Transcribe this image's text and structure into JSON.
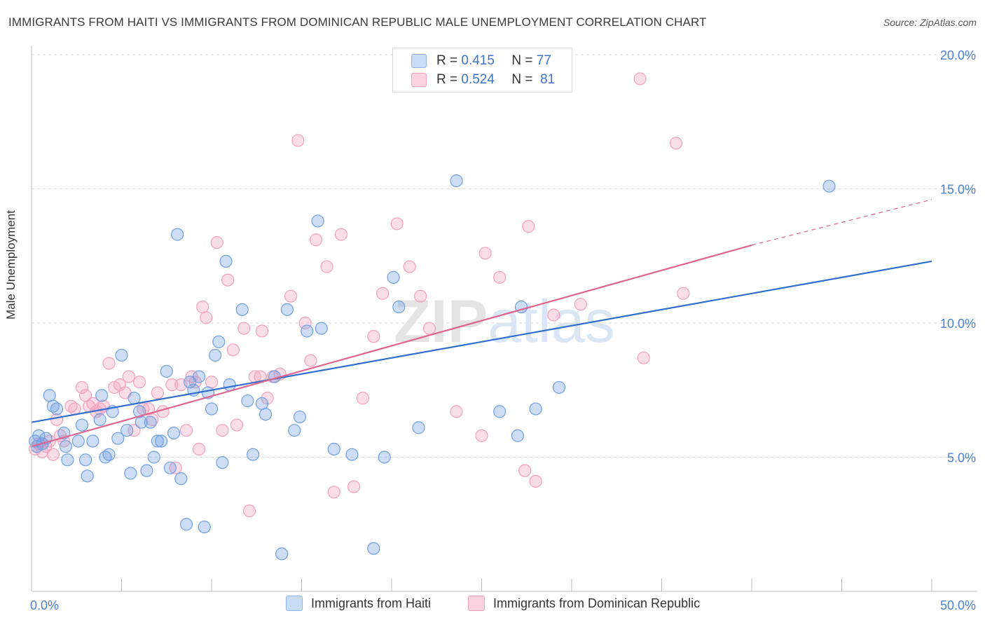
{
  "title": "IMMIGRANTS FROM HAITI VS IMMIGRANTS FROM DOMINICAN REPUBLIC MALE UNEMPLOYMENT CORRELATION CHART",
  "source": "Source: ZipAtlas.com",
  "watermark": "ZIPatlas",
  "legend": {
    "rows": [
      {
        "r_label": "R =",
        "r_value": "0.415",
        "n_label": "N =",
        "n_value": "77"
      },
      {
        "r_label": "R =",
        "r_value": "0.524",
        "n_label": "N =",
        "n_value": "81"
      }
    ]
  },
  "colors": {
    "haiti": "#6f9fe0",
    "haiti_line": "#2f6fcd",
    "dr": "#f2a0bb",
    "dr_line": "#e0648e",
    "tick": "#4a7fd0",
    "grid": "#d9d9d9"
  },
  "chart_data": {
    "type": "scatter",
    "title": "IMMIGRANTS FROM HAITI VS IMMIGRANTS FROM DOMINICAN REPUBLIC MALE UNEMPLOYMENT CORRELATION CHART",
    "xlabel": "",
    "ylabel": "Male Unemployment",
    "xlim": [
      0,
      50
    ],
    "ylim": [
      0,
      20
    ],
    "x_tick_labels": [
      "0.0%",
      "50.0%"
    ],
    "y_ticks": [
      5,
      10,
      15,
      20
    ],
    "y_tick_labels": [
      "5.0%",
      "10.0%",
      "15.0%",
      "20.0%"
    ],
    "grid": true,
    "legend_position": "top-center",
    "series": [
      {
        "name": "Immigrants from Haiti",
        "stats": {
          "R": 0.415,
          "N": 77
        },
        "trendline": {
          "x": [
            0,
            50
          ],
          "y": [
            6.3,
            12.3
          ]
        },
        "points": [
          [
            0.2,
            5.6
          ],
          [
            0.3,
            5.4
          ],
          [
            0.4,
            5.8
          ],
          [
            0.6,
            5.5
          ],
          [
            0.8,
            5.7
          ],
          [
            1.0,
            7.3
          ],
          [
            1.2,
            6.9
          ],
          [
            1.4,
            6.8
          ],
          [
            1.8,
            5.9
          ],
          [
            1.9,
            5.4
          ],
          [
            2.0,
            4.9
          ],
          [
            2.6,
            5.6
          ],
          [
            2.8,
            6.2
          ],
          [
            3.0,
            4.9
          ],
          [
            3.1,
            4.3
          ],
          [
            3.4,
            5.6
          ],
          [
            3.8,
            6.4
          ],
          [
            3.9,
            7.3
          ],
          [
            4.1,
            5.0
          ],
          [
            4.3,
            5.1
          ],
          [
            4.5,
            6.7
          ],
          [
            4.8,
            5.7
          ],
          [
            5.0,
            8.8
          ],
          [
            5.3,
            6.0
          ],
          [
            5.5,
            4.4
          ],
          [
            5.7,
            7.2
          ],
          [
            6.0,
            6.7
          ],
          [
            6.1,
            6.3
          ],
          [
            6.4,
            4.5
          ],
          [
            6.6,
            6.3
          ],
          [
            6.8,
            5.0
          ],
          [
            7.0,
            5.6
          ],
          [
            7.2,
            5.6
          ],
          [
            7.5,
            8.2
          ],
          [
            7.7,
            4.6
          ],
          [
            7.9,
            5.9
          ],
          [
            8.1,
            13.3
          ],
          [
            8.3,
            4.2
          ],
          [
            8.6,
            2.5
          ],
          [
            8.8,
            7.8
          ],
          [
            9.0,
            7.5
          ],
          [
            9.3,
            8.0
          ],
          [
            9.6,
            2.4
          ],
          [
            9.8,
            7.4
          ],
          [
            10.0,
            6.8
          ],
          [
            10.2,
            8.8
          ],
          [
            10.4,
            9.3
          ],
          [
            10.6,
            4.8
          ],
          [
            10.8,
            12.3
          ],
          [
            11.0,
            7.7
          ],
          [
            11.7,
            10.5
          ],
          [
            12.0,
            7.1
          ],
          [
            12.3,
            5.1
          ],
          [
            12.8,
            7.0
          ],
          [
            13.0,
            6.6
          ],
          [
            13.5,
            8.0
          ],
          [
            13.9,
            1.4
          ],
          [
            14.2,
            10.5
          ],
          [
            14.6,
            6.0
          ],
          [
            14.9,
            6.5
          ],
          [
            15.3,
            9.7
          ],
          [
            15.9,
            13.8
          ],
          [
            16.1,
            9.8
          ],
          [
            16.8,
            5.3
          ],
          [
            17.8,
            5.1
          ],
          [
            19.0,
            1.6
          ],
          [
            19.6,
            5.0
          ],
          [
            20.1,
            11.7
          ],
          [
            20.4,
            10.6
          ],
          [
            21.5,
            6.1
          ],
          [
            23.6,
            15.3
          ],
          [
            26.0,
            6.7
          ],
          [
            27.0,
            5.8
          ],
          [
            27.2,
            10.6
          ],
          [
            28.0,
            6.8
          ],
          [
            29.3,
            7.6
          ],
          [
            44.3,
            15.1
          ]
        ]
      },
      {
        "name": "Immigrants from Dominican Republic",
        "stats": {
          "R": 0.524,
          "N": 81
        },
        "trendline": {
          "x": [
            0,
            40
          ],
          "y": [
            5.4,
            12.9
          ]
        },
        "trendline_dashed": {
          "x": [
            40,
            50
          ],
          "y": [
            12.9,
            14.6
          ]
        },
        "points": [
          [
            0.2,
            5.3
          ],
          [
            0.4,
            5.5
          ],
          [
            0.6,
            5.2
          ],
          [
            0.8,
            5.4
          ],
          [
            1.0,
            5.6
          ],
          [
            1.2,
            5.1
          ],
          [
            1.4,
            6.4
          ],
          [
            1.6,
            5.8
          ],
          [
            1.8,
            5.6
          ],
          [
            2.2,
            6.9
          ],
          [
            2.4,
            6.8
          ],
          [
            2.8,
            7.6
          ],
          [
            3.0,
            7.3
          ],
          [
            3.2,
            6.9
          ],
          [
            3.4,
            7.0
          ],
          [
            3.6,
            6.7
          ],
          [
            3.8,
            6.8
          ],
          [
            4.0,
            6.9
          ],
          [
            4.3,
            8.5
          ],
          [
            4.6,
            7.6
          ],
          [
            4.9,
            7.7
          ],
          [
            5.2,
            7.4
          ],
          [
            5.4,
            8.0
          ],
          [
            5.7,
            6.0
          ],
          [
            6.0,
            7.8
          ],
          [
            6.2,
            6.8
          ],
          [
            6.5,
            6.8
          ],
          [
            6.7,
            6.4
          ],
          [
            7.0,
            7.4
          ],
          [
            7.3,
            6.7
          ],
          [
            7.8,
            7.7
          ],
          [
            8.0,
            4.6
          ],
          [
            8.3,
            7.7
          ],
          [
            8.6,
            6.0
          ],
          [
            8.9,
            8.0
          ],
          [
            9.1,
            7.8
          ],
          [
            9.3,
            5.3
          ],
          [
            9.5,
            10.6
          ],
          [
            9.7,
            10.2
          ],
          [
            10.0,
            7.8
          ],
          [
            10.3,
            13.0
          ],
          [
            10.6,
            6.0
          ],
          [
            10.9,
            11.6
          ],
          [
            11.2,
            9.0
          ],
          [
            11.4,
            6.2
          ],
          [
            11.8,
            9.8
          ],
          [
            12.1,
            3.0
          ],
          [
            12.4,
            8.0
          ],
          [
            12.7,
            8.0
          ],
          [
            12.8,
            9.7
          ],
          [
            13.1,
            7.2
          ],
          [
            13.4,
            8.0
          ],
          [
            13.8,
            8.1
          ],
          [
            14.4,
            11.0
          ],
          [
            14.8,
            16.8
          ],
          [
            15.2,
            10.0
          ],
          [
            15.5,
            8.6
          ],
          [
            15.8,
            13.1
          ],
          [
            16.4,
            12.1
          ],
          [
            16.8,
            3.7
          ],
          [
            17.2,
            13.3
          ],
          [
            17.9,
            3.9
          ],
          [
            18.4,
            7.2
          ],
          [
            19.0,
            9.5
          ],
          [
            19.5,
            11.1
          ],
          [
            20.3,
            13.7
          ],
          [
            21.0,
            12.1
          ],
          [
            21.6,
            11.0
          ],
          [
            22.1,
            9.8
          ],
          [
            23.6,
            6.7
          ],
          [
            25.0,
            5.8
          ],
          [
            25.2,
            12.6
          ],
          [
            26.0,
            11.7
          ],
          [
            27.4,
            4.5
          ],
          [
            27.6,
            13.6
          ],
          [
            28.0,
            4.1
          ],
          [
            29.0,
            10.3
          ],
          [
            30.5,
            10.7
          ],
          [
            33.8,
            19.1
          ],
          [
            34.0,
            8.7
          ],
          [
            35.8,
            16.7
          ],
          [
            36.2,
            11.1
          ]
        ]
      }
    ]
  },
  "bottom_legend": [
    "Immigrants from Haiti",
    "Immigrants from Dominican Republic"
  ]
}
